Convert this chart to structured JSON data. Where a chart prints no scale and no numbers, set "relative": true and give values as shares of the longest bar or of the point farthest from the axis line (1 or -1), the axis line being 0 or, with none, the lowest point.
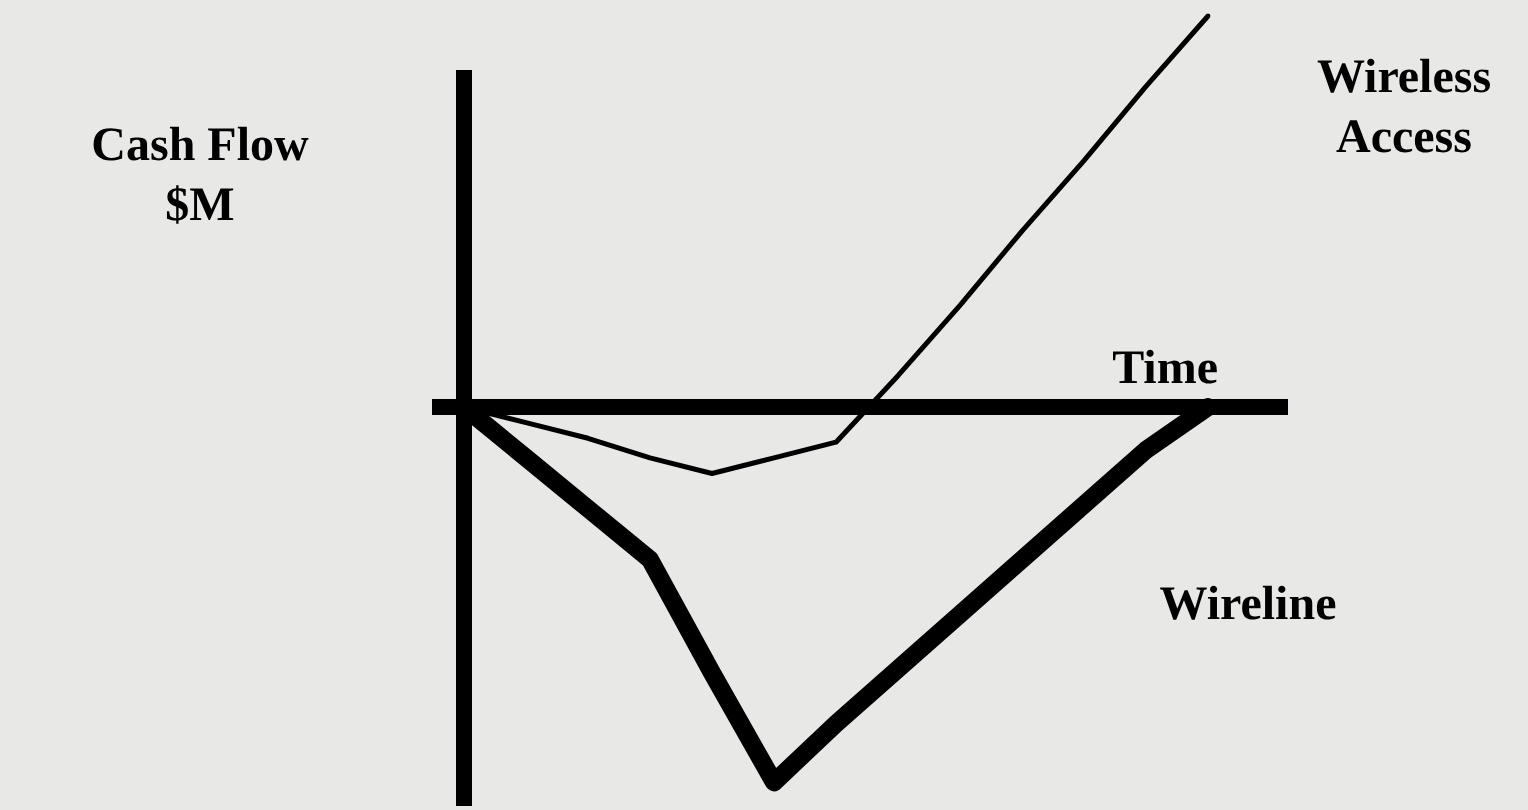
{
  "chart_data": {
    "type": "line",
    "relative": true,
    "ylabel": "Cash Flow\n$M",
    "xlabel": "Time",
    "categories": [
      null,
      null,
      null,
      null,
      null,
      null,
      null,
      null,
      null,
      null,
      null,
      null,
      null
    ],
    "series": [
      {
        "name": "Wireless\nAccess",
        "color": "#000000",
        "values": [
          0,
          -0.04,
          -0.08,
          -0.13,
          -0.17,
          -0.13,
          -0.09,
          0.08,
          0.26,
          0.45,
          0.63,
          0.82,
          1.0
        ]
      },
      {
        "name": "Wireline",
        "color": "#000000",
        "values": [
          0,
          -0.13,
          -0.26,
          -0.39,
          -0.68,
          -0.96,
          -0.81,
          -0.67,
          -0.53,
          -0.39,
          -0.25,
          -0.11,
          0
        ]
      }
    ],
    "grid": false,
    "legend": false,
    "marker": "none",
    "line_style": "solid"
  }
}
